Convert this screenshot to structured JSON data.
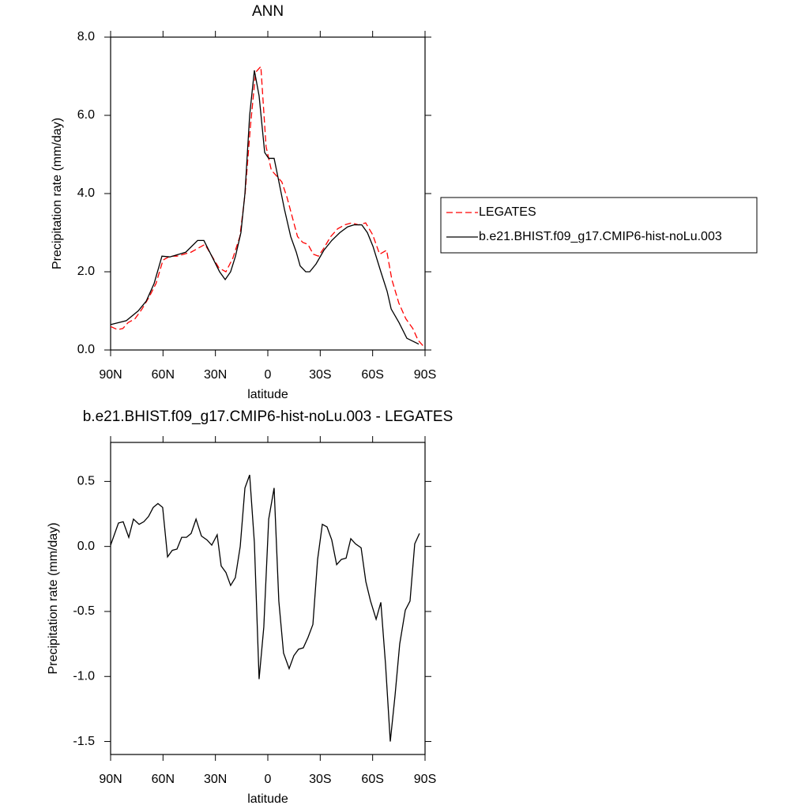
{
  "chart_data": [
    {
      "type": "line",
      "title": "ANN",
      "xlabel": "latitude",
      "ylabel": "Precipitation rate (mm/day)",
      "xlim": [
        90,
        -90
      ],
      "xticks": [
        {
          "value": 90,
          "label": "90N"
        },
        {
          "value": 60,
          "label": "60N"
        },
        {
          "value": 30,
          "label": "30N"
        },
        0,
        {
          "value": -30,
          "label": "30S"
        },
        {
          "value": -60,
          "label": "60S"
        },
        {
          "value": -90,
          "label": "90S"
        }
      ],
      "ylim": [
        0,
        8
      ],
      "yticks": [
        {
          "value": 0,
          "label": "0.0"
        },
        {
          "value": 2,
          "label": "2.0"
        },
        {
          "value": 4,
          "label": "4.0"
        },
        {
          "value": 6,
          "label": "6.0"
        },
        {
          "value": 8,
          "label": "8.0"
        }
      ],
      "legend": "right",
      "series": [
        {
          "name": "LEGATES",
          "color": "#ff0000",
          "dash": true,
          "x": [
            90,
            86,
            83,
            80,
            76,
            72,
            68,
            64,
            60,
            56,
            52,
            48,
            44,
            40,
            36,
            32,
            28,
            24,
            20,
            16,
            13,
            10,
            7,
            4,
            1,
            -2,
            -5,
            -8,
            -11,
            -14,
            -17,
            -20,
            -23,
            -26,
            -29,
            -32,
            -36,
            -40,
            -44,
            -48,
            -52,
            -56,
            -60,
            -64,
            -68,
            -71,
            -75,
            -79,
            -83,
            -86,
            -89
          ],
          "values": [
            0.6,
            0.52,
            0.55,
            0.7,
            0.8,
            1.05,
            1.35,
            1.7,
            2.3,
            2.4,
            2.4,
            2.45,
            2.5,
            2.6,
            2.7,
            2.4,
            2.1,
            2.0,
            2.35,
            2.9,
            4.0,
            5.7,
            7.1,
            7.25,
            5.2,
            4.6,
            4.45,
            4.3,
            3.9,
            3.4,
            2.9,
            2.75,
            2.7,
            2.45,
            2.4,
            2.6,
            2.9,
            3.1,
            3.2,
            3.25,
            3.2,
            3.25,
            2.95,
            2.45,
            2.55,
            1.8,
            1.2,
            0.8,
            0.55,
            0.25,
            0.1
          ]
        },
        {
          "name": "b.e21.BHIST.f09_g17.CMIP6-hist-noLu.003",
          "color": "#000000",
          "dash": false,
          "x": [
            90,
            81,
            74.2,
            69.6,
            65.1,
            60.6,
            56.1,
            47,
            40.2,
            36.6,
            32.1,
            27.6,
            24.4,
            21.3,
            18.5,
            15.4,
            13.1,
            10.4,
            7.7,
            5,
            1.8,
            -0.5,
            -3.6,
            -5.9,
            -9.5,
            -13.1,
            -16.3,
            -18.5,
            -21.7,
            -24,
            -27.6,
            -32.1,
            -36.6,
            -41.2,
            -45.7,
            -49.3,
            -53.8,
            -57,
            -60.2,
            -64.7,
            -68.3,
            -70.6,
            -75.1,
            -79.6,
            -84.1,
            -86.4
          ],
          "values": [
            0.65,
            0.75,
            1.0,
            1.25,
            1.7,
            2.4,
            2.38,
            2.5,
            2.8,
            2.8,
            2.4,
            2.0,
            1.8,
            2.0,
            2.4,
            3.0,
            4.0,
            6.0,
            7.15,
            6.5,
            5.05,
            4.9,
            4.9,
            4.4,
            3.6,
            2.9,
            2.5,
            2.15,
            2.0,
            2.0,
            2.2,
            2.55,
            2.8,
            3.0,
            3.15,
            3.2,
            3.2,
            3.0,
            2.65,
            2.0,
            1.5,
            1.05,
            0.7,
            0.3,
            0.2,
            0.15
          ]
        }
      ]
    },
    {
      "type": "line",
      "title": "b.e21.BHIST.f09_g17.CMIP6-hist-noLu.003 - LEGATES",
      "xlabel": "latitude",
      "ylabel": "Precipitation rate (mm/day)",
      "xlim": [
        90,
        -90
      ],
      "xticks": [
        {
          "value": 90,
          "label": "90N"
        },
        {
          "value": 60,
          "label": "60N"
        },
        {
          "value": 30,
          "label": "30N"
        },
        0,
        {
          "value": -30,
          "label": "30S"
        },
        {
          "value": -60,
          "label": "60S"
        },
        {
          "value": -90,
          "label": "90S"
        }
      ],
      "ylim": [
        -1.6,
        0.8
      ],
      "yticks": [
        0.5,
        {
          "value": 0,
          "label": "0.0"
        },
        -0.5,
        {
          "value": -1,
          "label": "-1.0"
        },
        -1.5
      ],
      "series": [
        {
          "color": "#000000",
          "dash": false,
          "x": [
            90,
            85.5,
            82.8,
            79.6,
            76.9,
            73.7,
            71.0,
            68.3,
            65.6,
            62.9,
            60.2,
            57.4,
            54.7,
            52.0,
            49.3,
            46.6,
            43.9,
            41.1,
            38.0,
            34.8,
            32.1,
            29.0,
            26.7,
            24.0,
            21.3,
            18.6,
            15.8,
            13.1,
            10.4,
            7.7,
            5.0,
            2.3,
            -0.5,
            -3.6,
            -6.3,
            -9.0,
            -12.2,
            -14.9,
            -17.6,
            -20.3,
            -23.0,
            -25.8,
            -28.5,
            -31.2,
            -33.9,
            -36.6,
            -39.4,
            -42.1,
            -44.8,
            -47.5,
            -50.2,
            -53.4,
            -56.1,
            -58.8,
            -62.0,
            -64.7,
            -67.4,
            -70.1,
            -72.8,
            -75.5,
            -78.7,
            -81.4,
            -84.1,
            -86.8
          ],
          "values": [
            0.01,
            0.18,
            0.19,
            0.07,
            0.21,
            0.17,
            0.19,
            0.23,
            0.3,
            0.33,
            0.3,
            -0.08,
            -0.03,
            -0.02,
            0.07,
            0.07,
            0.1,
            0.21,
            0.08,
            0.05,
            0.01,
            0.09,
            -0.15,
            -0.2,
            -0.3,
            -0.24,
            0.0,
            0.45,
            0.55,
            0.03,
            -1.02,
            -0.62,
            0.21,
            0.45,
            -0.42,
            -0.82,
            -0.94,
            -0.84,
            -0.79,
            -0.78,
            -0.7,
            -0.6,
            -0.1,
            0.17,
            0.15,
            0.05,
            -0.14,
            -0.1,
            -0.09,
            0.06,
            0.02,
            -0.01,
            -0.27,
            -0.42,
            -0.56,
            -0.43,
            -0.91,
            -1.5,
            -1.15,
            -0.75,
            -0.49,
            -0.42,
            0.02,
            0.1
          ]
        }
      ]
    }
  ]
}
